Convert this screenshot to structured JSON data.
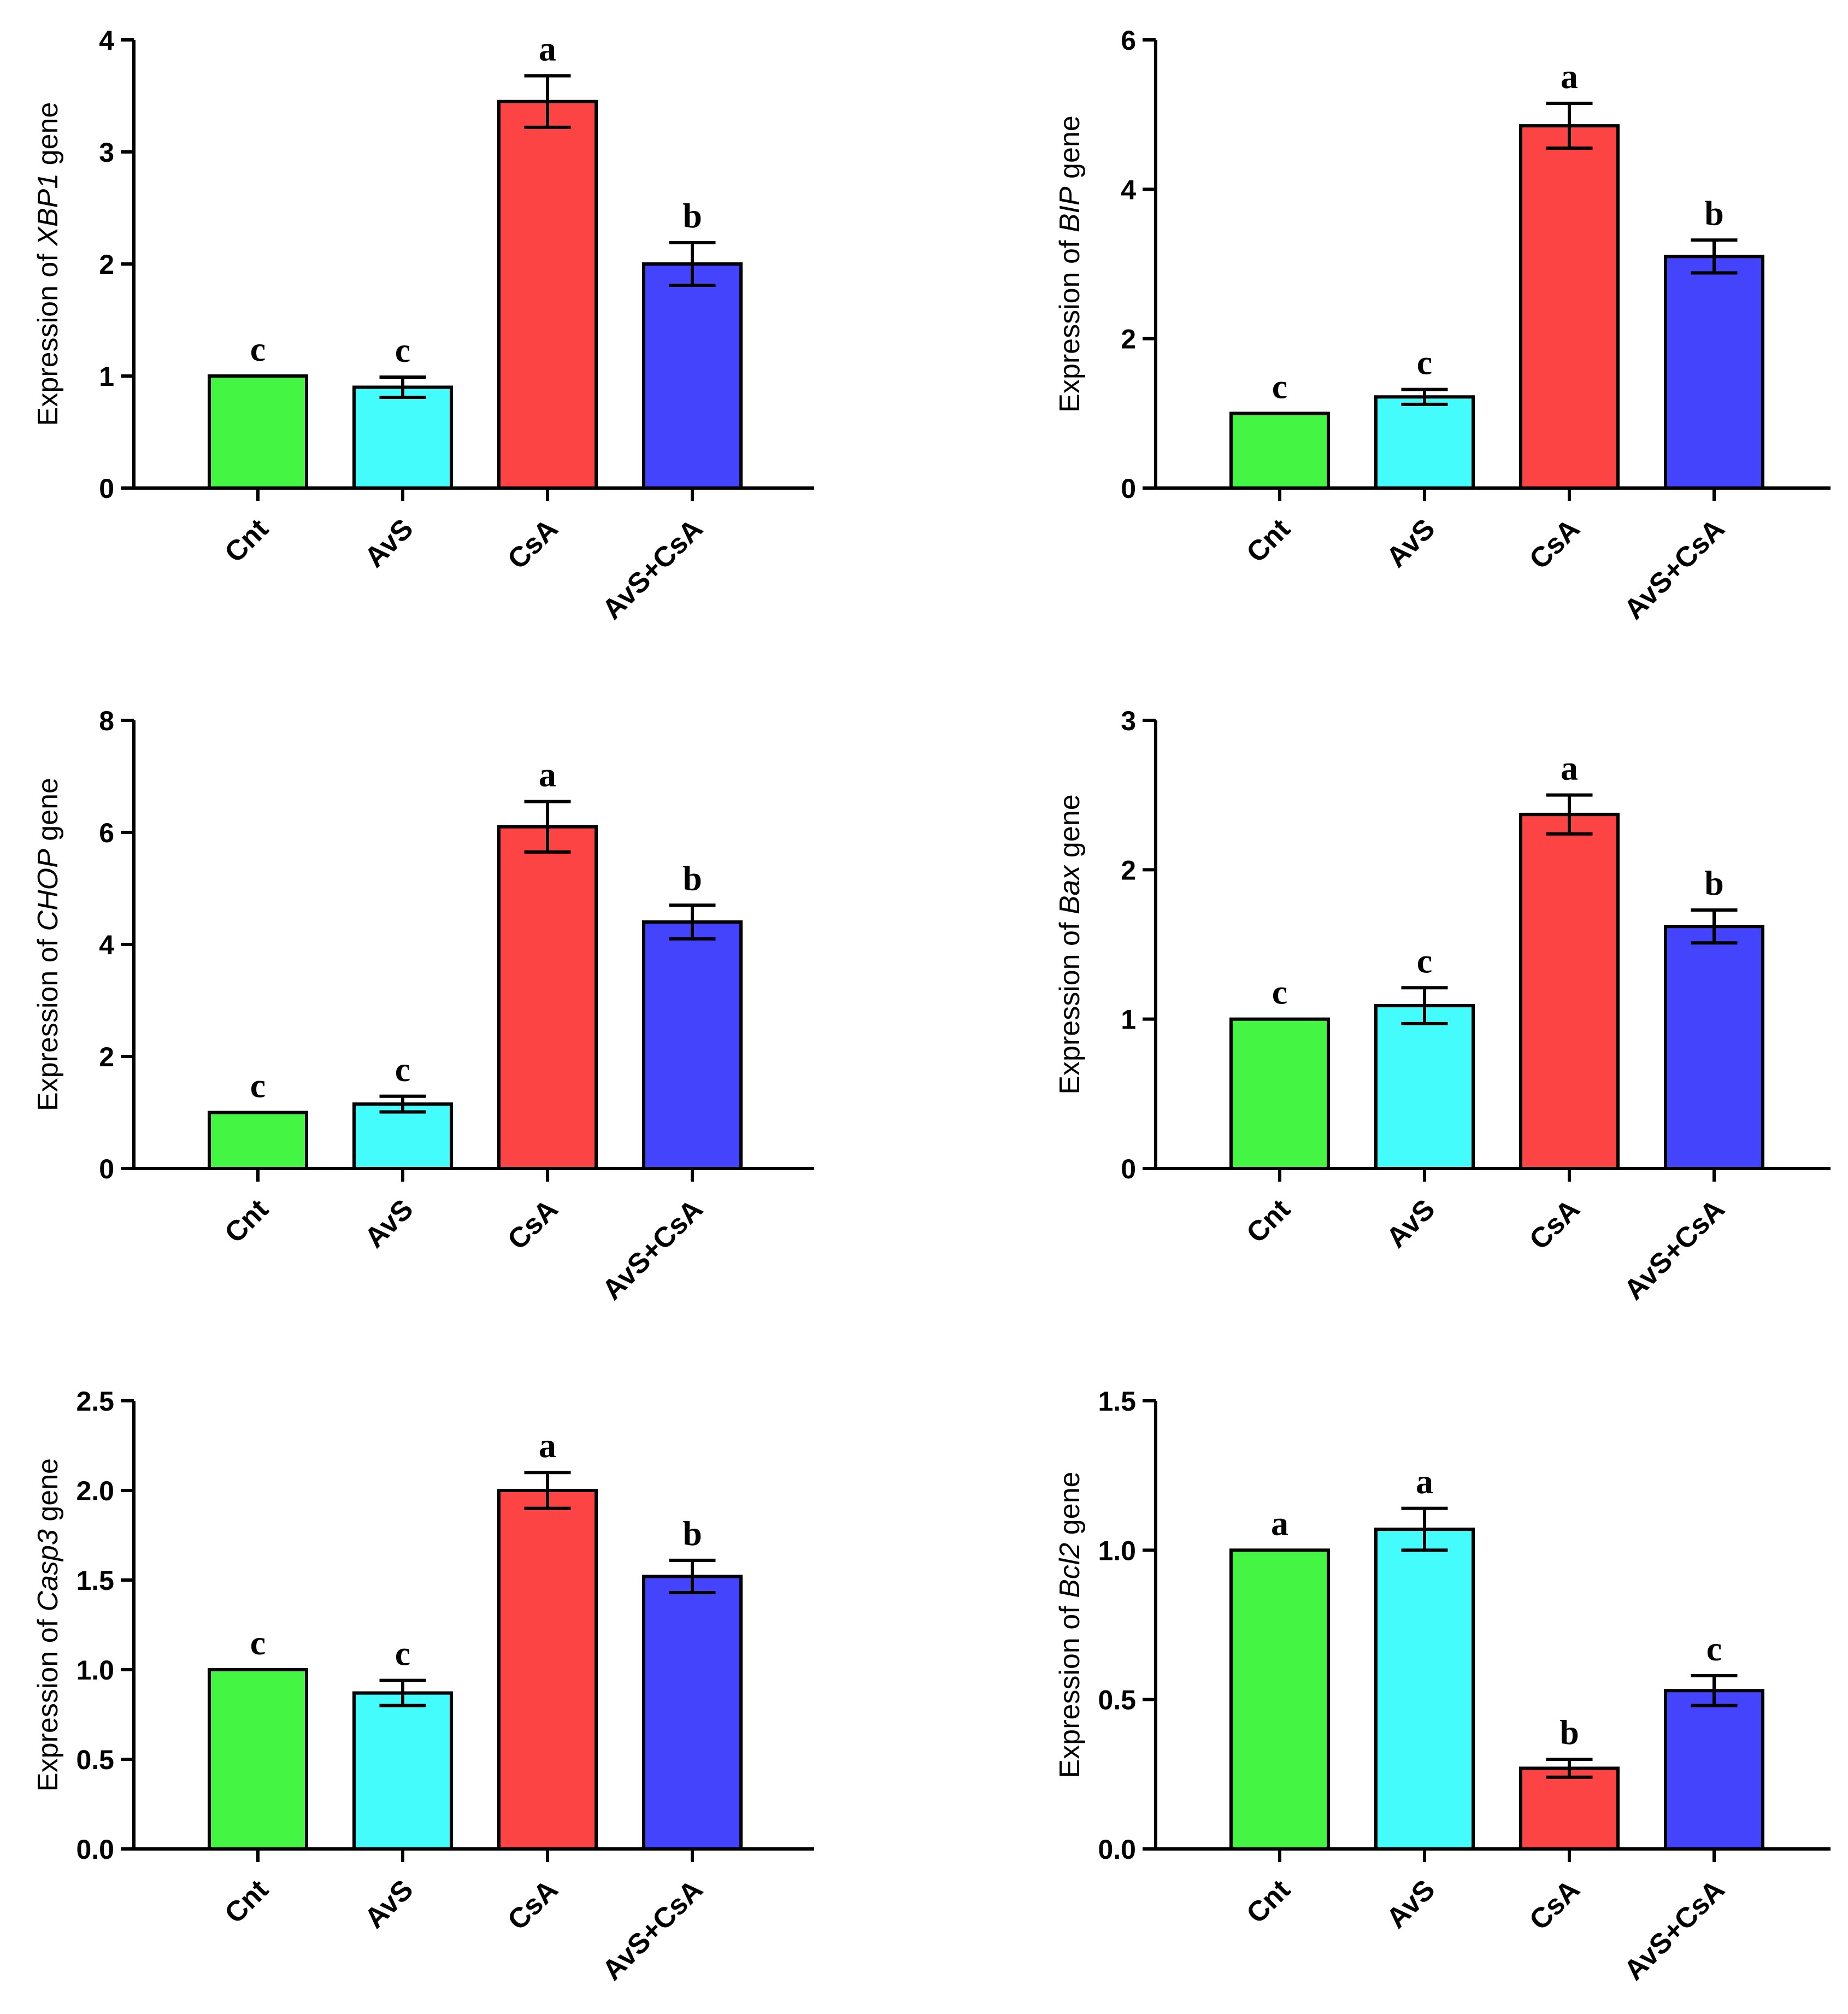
{
  "chart_data": [
    {
      "type": "bar",
      "categories": [
        "Cnt",
        "AvS",
        "CsA",
        "AvS+CsA"
      ],
      "ylabel_prefix": "Expression of ",
      "ylabel_gene": "XBP1",
      "ylabel_suffix": " gene",
      "ylim": [
        0,
        4
      ],
      "yticks": [
        "0",
        "1",
        "2",
        "3",
        "4"
      ],
      "values": [
        1.0,
        0.9,
        3.45,
        2.0
      ],
      "errors": [
        0,
        0.09,
        0.23,
        0.19
      ],
      "letters": [
        "c",
        "c",
        "a",
        "b"
      ]
    },
    {
      "type": "bar",
      "categories": [
        "Cnt",
        "AvS",
        "CsA",
        "AvS+CsA"
      ],
      "ylabel_prefix": "Expression of ",
      "ylabel_gene": "BIP",
      "ylabel_suffix": " gene",
      "ylim": [
        0,
        6
      ],
      "yticks": [
        "0",
        "2",
        "4",
        "6"
      ],
      "values": [
        1.0,
        1.22,
        4.85,
        3.1
      ],
      "errors": [
        0,
        0.1,
        0.3,
        0.22
      ],
      "letters": [
        "c",
        "c",
        "a",
        "b"
      ]
    },
    {
      "type": "bar",
      "categories": [
        "Cnt",
        "AvS",
        "CsA",
        "AvS+CsA"
      ],
      "ylabel_prefix": "Expression of ",
      "ylabel_gene": "CHOP",
      "ylabel_suffix": " gene",
      "ylim": [
        0,
        8
      ],
      "yticks": [
        "0",
        "2",
        "4",
        "6",
        "8"
      ],
      "values": [
        1.0,
        1.15,
        6.1,
        4.4
      ],
      "errors": [
        0,
        0.14,
        0.45,
        0.3
      ],
      "letters": [
        "c",
        "c",
        "a",
        "b"
      ]
    },
    {
      "type": "bar",
      "categories": [
        "Cnt",
        "AvS",
        "CsA",
        "AvS+CsA"
      ],
      "ylabel_prefix": "Expression of ",
      "ylabel_gene": "Bax",
      "ylabel_suffix": " gene",
      "ylim": [
        0,
        3
      ],
      "yticks": [
        "0",
        "1",
        "2",
        "3"
      ],
      "values": [
        1.0,
        1.09,
        2.37,
        1.62
      ],
      "errors": [
        0,
        0.12,
        0.13,
        0.11
      ],
      "letters": [
        "c",
        "c",
        "a",
        "b"
      ]
    },
    {
      "type": "bar",
      "categories": [
        "Cnt",
        "AvS",
        "CsA",
        "AvS+CsA"
      ],
      "ylabel_prefix": "Expression of ",
      "ylabel_gene": "Casp3",
      "ylabel_suffix": " gene",
      "ylim": [
        0,
        2.5
      ],
      "yticks": [
        "0.0",
        "0.5",
        "1.0",
        "1.5",
        "2.0",
        "2.5"
      ],
      "values": [
        1.0,
        0.87,
        2.0,
        1.52
      ],
      "errors": [
        0,
        0.07,
        0.1,
        0.09
      ],
      "letters": [
        "c",
        "c",
        "a",
        "b"
      ]
    },
    {
      "type": "bar",
      "categories": [
        "Cnt",
        "AvS",
        "CsA",
        "AvS+CsA"
      ],
      "ylabel_prefix": "Expression of ",
      "ylabel_gene": "Bcl2",
      "ylabel_suffix": " gene",
      "ylim": [
        0,
        1.5
      ],
      "yticks": [
        "0.0",
        "0.5",
        "1.0",
        "1.5"
      ],
      "values": [
        1.0,
        1.07,
        0.27,
        0.53
      ],
      "errors": [
        0,
        0.07,
        0.03,
        0.05
      ],
      "letters": [
        "a",
        "a",
        "b",
        "c"
      ]
    }
  ],
  "colors": {
    "bars": [
      "#44f544",
      "#44fcfc",
      "#fc4444",
      "#4444fc"
    ],
    "axis": "#000000",
    "background": "#ffffff"
  }
}
